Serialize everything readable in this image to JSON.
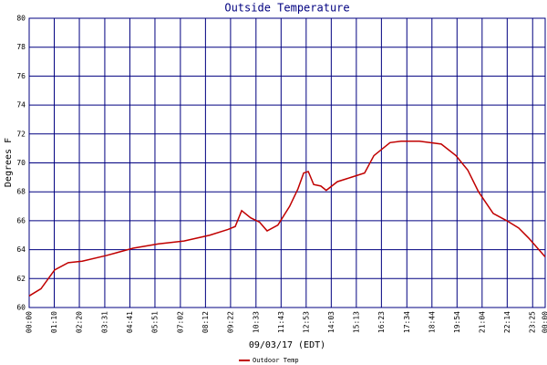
{
  "chart_data": {
    "type": "line",
    "title": "Outside Temperature",
    "ylabel": "Degrees F",
    "xlabel": "09/03/17 (EDT)",
    "x": [
      0,
      33,
      71,
      109,
      148,
      216,
      290,
      361,
      432,
      504,
      555,
      575,
      593,
      618,
      643,
      664,
      694,
      727,
      750,
      766,
      779,
      794,
      814,
      829,
      860,
      898,
      936,
      962,
      1007,
      1038,
      1089,
      1150,
      1191,
      1224,
      1254,
      1295,
      1333,
      1366,
      1394,
      1440
    ],
    "series": [
      {
        "name": "Outdoor Temp",
        "color": "#c00000",
        "values": [
          60.8,
          61.3,
          62.6,
          63.1,
          63.2,
          63.6,
          64.1,
          64.4,
          64.6,
          65.0,
          65.4,
          65.6,
          66.7,
          66.2,
          65.9,
          65.3,
          65.7,
          67.0,
          68.2,
          69.3,
          69.4,
          68.5,
          68.4,
          68.1,
          68.7,
          69.0,
          69.3,
          70.5,
          71.4,
          71.5,
          71.5,
          71.3,
          70.5,
          69.5,
          68.0,
          66.5,
          66.0,
          65.5,
          64.8,
          63.5
        ]
      }
    ],
    "xlim": [
      0,
      1440
    ],
    "xticks": [
      {
        "value": 0,
        "label": "00:00"
      },
      {
        "value": 70,
        "label": "01:10"
      },
      {
        "value": 140,
        "label": "02:20"
      },
      {
        "value": 211,
        "label": "03:31"
      },
      {
        "value": 281,
        "label": "04:41"
      },
      {
        "value": 351,
        "label": "05:51"
      },
      {
        "value": 422,
        "label": "07:02"
      },
      {
        "value": 492,
        "label": "08:12"
      },
      {
        "value": 562,
        "label": "09:22"
      },
      {
        "value": 633,
        "label": "10:33"
      },
      {
        "value": 703,
        "label": "11:43"
      },
      {
        "value": 773,
        "label": "12:53"
      },
      {
        "value": 843,
        "label": "14:03"
      },
      {
        "value": 913,
        "label": "15:13"
      },
      {
        "value": 983,
        "label": "16:23"
      },
      {
        "value": 1054,
        "label": "17:34"
      },
      {
        "value": 1124,
        "label": "18:44"
      },
      {
        "value": 1194,
        "label": "19:54"
      },
      {
        "value": 1264,
        "label": "21:04"
      },
      {
        "value": 1334,
        "label": "22:14"
      },
      {
        "value": 1405,
        "label": "23:25"
      },
      {
        "value": 1440,
        "label": "00:00"
      }
    ],
    "ylim": [
      60,
      80
    ],
    "yticks": [
      60,
      62,
      64,
      66,
      68,
      70,
      72,
      74,
      76,
      78,
      80
    ],
    "grid": true,
    "grid_color": "#000080"
  }
}
